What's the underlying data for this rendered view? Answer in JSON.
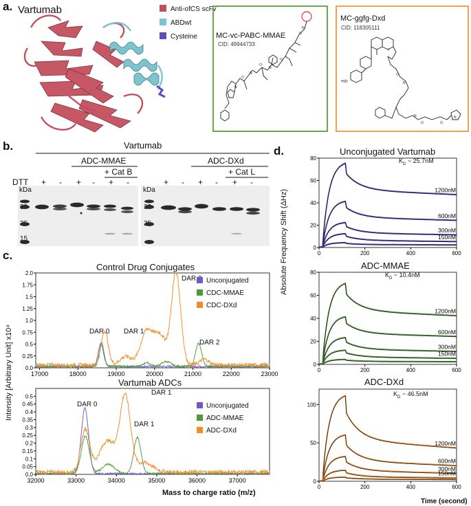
{
  "panel_a": {
    "label": "a.",
    "title": "Vartumab",
    "legend": [
      {
        "label": "Anti-ofCS scFv",
        "color": "#c2505c"
      },
      {
        "label": "ABDwt",
        "color": "#7ec4cf"
      },
      {
        "label": "Cysteine",
        "color": "#5a4fbd"
      }
    ],
    "box1": {
      "name": "MC-vc-PABC-MMAE",
      "cid": "CID: 49944733",
      "border": "#6aa84f"
    },
    "box2": {
      "name": "MC-ggfg-Dxd",
      "cid": "CID: 118305111",
      "border": "#f0a050"
    }
  },
  "panel_b": {
    "label": "b.",
    "title": "Vartumab",
    "group1": "ADC-MMAE",
    "group2": "ADC-DXd",
    "catb": "+ Cat B",
    "catl": "+ Cat L",
    "dtt_label": "DTT",
    "dtt_left": [
      "+",
      "-",
      "+",
      "-",
      "+",
      "-"
    ],
    "dtt_right": [
      "+",
      "-",
      "+",
      "-",
      "+",
      "-"
    ],
    "kda": "kDa",
    "markers": [
      "30",
      "25",
      "15"
    ],
    "markers_right": [
      "30",
      "25"
    ]
  },
  "panel_c": {
    "label": "c.",
    "ylabel": "Intensity [Arbitrary Unit] x10⁴",
    "xlabel": "Mass to charge ratio (m/z)",
    "top": {
      "title": "Control Drug Conjugates",
      "legend": [
        "Unconjugated",
        "CDC-MMAE",
        "CDC-DXd"
      ],
      "annotations": [
        "DAR 0",
        "DAR 1",
        "DAR 2",
        "DAR 2"
      ]
    },
    "bottom": {
      "title": "Vartumab ADCs",
      "legend": [
        "Unconjugated",
        "ADC-MMAE",
        "ADC-DXd"
      ],
      "annotations": [
        "DAR 0",
        "DAR 1",
        "DAR 1"
      ]
    }
  },
  "panel_d": {
    "label": "d.",
    "ylabel": "Absolute Frequency Shift (ΔHz)",
    "xlabel": "Time (second)"
  },
  "chart_data": [
    {
      "type": "line",
      "title": "Control Drug Conjugates",
      "xlim": [
        16900,
        23000
      ],
      "ylim": [
        0,
        2.0
      ],
      "xticks": [
        17000,
        18000,
        19000,
        20000,
        21000,
        22000,
        23000
      ],
      "yticks": [
        0.0,
        0.25,
        0.5,
        0.75,
        1.0,
        1.25,
        1.5,
        1.75,
        2.0
      ],
      "series": [
        {
          "name": "Unconjugated",
          "color": "#6a5acd",
          "baseline": 0.03,
          "noise": 0.02,
          "peaks": [
            [
              18600,
              0.48,
              70
            ]
          ]
        },
        {
          "name": "CDC-MMAE",
          "color": "#4e9a3a",
          "baseline": 0.03,
          "noise": 0.02,
          "peaks": [
            [
              18620,
              0.5,
              60
            ],
            [
              19800,
              0.08,
              90
            ],
            [
              20300,
              0.1,
              120
            ],
            [
              21150,
              0.48,
              80
            ]
          ]
        },
        {
          "name": "CDC-DXd",
          "color": "#f28c28",
          "baseline": 0.06,
          "noise": 0.04,
          "peaks": [
            [
              18700,
              0.72,
              90
            ],
            [
              19250,
              0.18,
              150
            ],
            [
              19800,
              0.72,
              160
            ],
            [
              20150,
              0.6,
              150
            ],
            [
              20560,
              1.95,
              120
            ],
            [
              21300,
              0.12,
              120
            ]
          ]
        }
      ]
    },
    {
      "type": "line",
      "title": "Vartumab ADCs",
      "xlim": [
        32000,
        37800
      ],
      "ylim": [
        0,
        0.55
      ],
      "xticks": [
        32000,
        33000,
        34000,
        35000,
        36000,
        37000
      ],
      "yticks": [
        0.0,
        0.05,
        0.1,
        0.15,
        0.2,
        0.25,
        0.3,
        0.35,
        0.4,
        0.45,
        0.5
      ],
      "series": [
        {
          "name": "Unconjugated",
          "color": "#6a5acd",
          "baseline": 0.005,
          "noise": 0.005,
          "peaks": [
            [
              33220,
              0.42,
              90
            ]
          ]
        },
        {
          "name": "ADC-MMAE",
          "color": "#4e9a3a",
          "baseline": 0.005,
          "noise": 0.006,
          "peaks": [
            [
              33230,
              0.24,
              100
            ],
            [
              33800,
              0.06,
              150
            ],
            [
              34520,
              0.23,
              90
            ]
          ]
        },
        {
          "name": "ADC-DXd",
          "color": "#f28c28",
          "baseline": 0.015,
          "noise": 0.012,
          "peaks": [
            [
              33230,
              0.27,
              110
            ],
            [
              33780,
              0.2,
              200
            ],
            [
              34220,
              0.48,
              130
            ],
            [
              34700,
              0.06,
              200
            ]
          ]
        }
      ]
    },
    {
      "type": "line",
      "title": "Unconjugated Vartumab",
      "kd": "~ 25.7nM",
      "xlim": [
        0,
        600
      ],
      "ylim": [
        0,
        80
      ],
      "xticks": [
        0,
        200,
        400,
        600
      ],
      "yticks": [
        0,
        20,
        40,
        60,
        80
      ],
      "fit_color": "#4b3fbf",
      "curves": [
        {
          "conc": "1200nM",
          "peak": 75,
          "end": 47
        },
        {
          "conc": "600nM",
          "peak": 41,
          "end": 24
        },
        {
          "conc": "300nM",
          "peak": 22,
          "end": 11
        },
        {
          "conc": "150nM",
          "peak": 12,
          "end": 5
        },
        {
          "conc": "",
          "peak": 4,
          "end": 2
        }
      ]
    },
    {
      "type": "line",
      "title": "ADC-MMAE",
      "kd": "~ 10.4nM",
      "xlim": [
        0,
        600
      ],
      "ylim": [
        0,
        80
      ],
      "xticks": [
        0,
        200,
        400,
        600
      ],
      "yticks": [
        0,
        20,
        40,
        60,
        80
      ],
      "fit_color": "#4e9a3a",
      "curves": [
        {
          "conc": "1200nM",
          "peak": 70,
          "end": 42
        },
        {
          "conc": "600nM",
          "peak": 41,
          "end": 24
        },
        {
          "conc": "300nM",
          "peak": 23,
          "end": 11
        },
        {
          "conc": "150nM",
          "peak": 12,
          "end": 5
        },
        {
          "conc": "",
          "peak": 4,
          "end": 2
        }
      ]
    },
    {
      "type": "line",
      "title": "ADC-DXd",
      "kd": "~ 46.5nM",
      "xlim": [
        0,
        600
      ],
      "ylim": [
        0,
        120
      ],
      "xticks": [
        0,
        200,
        400,
        600
      ],
      "yticks": [
        0,
        50,
        100
      ],
      "fit_color": "#f28c28",
      "curves": [
        {
          "conc": "1200nM",
          "peak": 111,
          "end": 43
        },
        {
          "conc": "600nM",
          "peak": 60,
          "end": 20
        },
        {
          "conc": "300nM",
          "peak": 32,
          "end": 10
        },
        {
          "conc": "150nM",
          "peak": 14,
          "end": 4
        },
        {
          "conc": "",
          "peak": 5,
          "end": 2
        }
      ]
    }
  ]
}
